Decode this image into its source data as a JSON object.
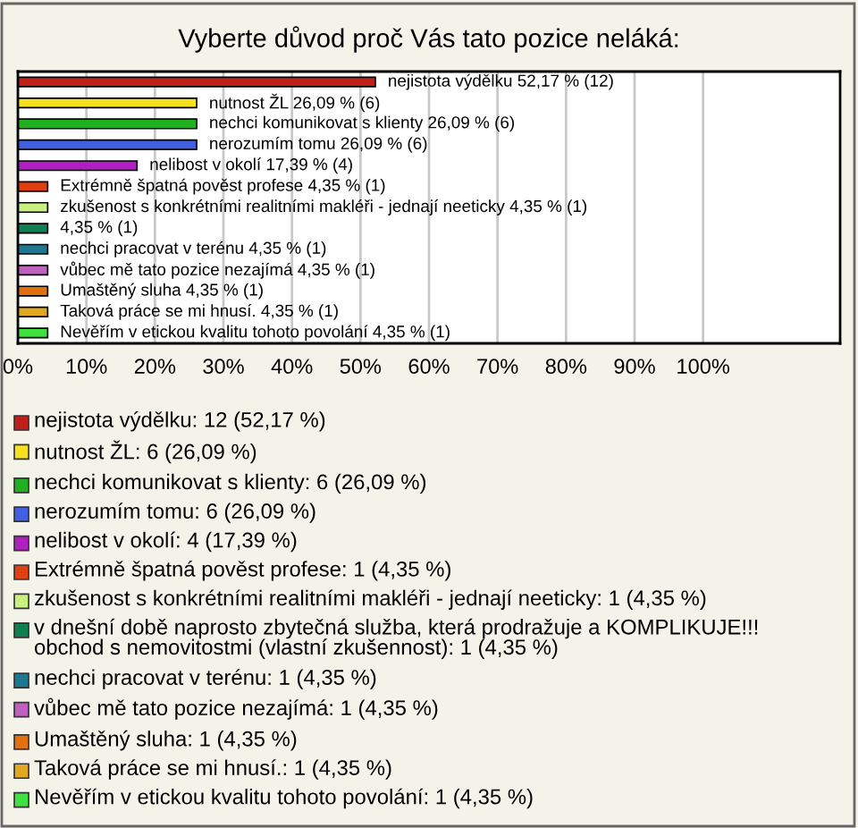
{
  "chart_data": {
    "type": "bar",
    "orientation": "horizontal",
    "title": "Vyberte důvod proč Vás tato pozice neláká:",
    "categories": [
      null,
      null,
      null,
      null,
      null,
      null,
      null,
      null,
      null,
      null,
      null,
      null,
      null
    ],
    "values": [
      52.17,
      26.09,
      26.09,
      26.09,
      17.39,
      4.35,
      4.35,
      4.35,
      4.35,
      4.35,
      4.35,
      4.35,
      4.35
    ],
    "colors": [
      "#c0201a",
      "#f5e020",
      "#20b020",
      "#4060e0",
      "#b020c0",
      "#e04010",
      "#c8f080",
      "#108050",
      "#207890",
      "#c060c0",
      "#e07010",
      "#e0a820",
      "#40e040"
    ],
    "value_labels": [
      "nejistota výdělku 52,17 % (12)",
      "nutnost ŽL 26,09 % (6)",
      "nechci komunikovat s klienty 26,09 % (6)",
      "nerozumím tomu 26,09 % (6)",
      "nelibost v okolí 17,39 % (4)",
      "Extrémně špatná pověst profese 4,35 % (1)",
      "zkušenost s konkrétními realitními makléři - jednají neeticky 4,35 % (1)",
      "4,35 % (1)",
      "nechci pracovat v terénu 4,35 % (1)",
      "vůbec mě tato pozice nezajímá 4,35 % (1)",
      "Umaštěný sluha 4,35 % (1)",
      "Taková práce se mi hnusí. 4,35 % (1)",
      "Nevěřím v etickou kvalitu tohoto povolání 4,35 % (1)"
    ],
    "xlim": [
      0,
      120
    ],
    "xticks": [
      {
        "value": 0,
        "label": "0%"
      },
      {
        "value": 10,
        "label": "10%"
      },
      {
        "value": 20,
        "label": "20%"
      },
      {
        "value": 30,
        "label": "30%"
      },
      {
        "value": 40,
        "label": "40%"
      },
      {
        "value": 50,
        "label": "50%"
      },
      {
        "value": 60,
        "label": "60%"
      },
      {
        "value": 70,
        "label": "70%"
      },
      {
        "value": 80,
        "label": "80%"
      },
      {
        "value": 90,
        "label": "90%"
      },
      {
        "value": 100,
        "label": "100%"
      }
    ],
    "grid": "x",
    "annotations": [
      "nejistota výdělku: 12 (52,17 %)",
      "nutnost ŽL: 6 (26,09 %)",
      "nechci komunikovat s klienty: 6 (26,09 %)",
      "nerozumím tomu: 6 (26,09 %)",
      "nelibost v okolí: 4 (17,39 %)",
      "Extrémně špatná pověst profese: 1 (4,35 %)",
      "zkušenost s konkrétními realitními makléři - jednají neeticky: 1 (4,35 %)",
      "v dnešní době naprosto zbytečná služba, která prodražuje a KOMPLIKUJE!!! obchod s nemovitostmi (vlastní zkušennost): 1 (4,35 %)",
      "nechci pracovat v terénu: 1 (4,35 %)",
      "vůbec mě tato pozice nezajímá: 1 (4,35 %)",
      "Umaštěný sluha: 1 (4,35 %)",
      "Taková práce se mi hnusí.: 1 (4,35 %)",
      "Nevěřím v etickou kvalitu tohoto povolání: 1 (4,35 %)"
    ]
  }
}
